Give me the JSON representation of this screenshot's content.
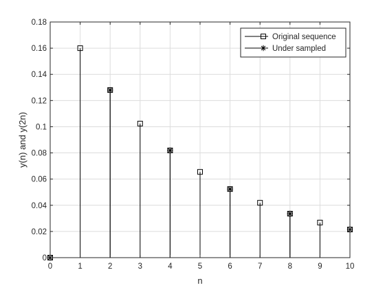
{
  "chart_data": {
    "type": "stem",
    "xlabel": "n",
    "ylabel": "y(n) and y(2n)",
    "xlim": [
      0,
      10
    ],
    "ylim": [
      0,
      0.18
    ],
    "x_ticks": [
      0,
      1,
      2,
      3,
      4,
      5,
      6,
      7,
      8,
      9,
      10
    ],
    "x_tick_labels": [
      "0",
      "1",
      "2",
      "3",
      "4",
      "5",
      "6",
      "7",
      "8",
      "9",
      "10"
    ],
    "y_ticks": [
      0,
      0.02,
      0.04,
      0.06,
      0.08,
      0.1,
      0.12,
      0.14,
      0.16,
      0.18
    ],
    "y_tick_labels": [
      "0",
      "0.02",
      "0.04",
      "0.06",
      "0.08",
      "0.1",
      "0.12",
      "0.14",
      "0.16",
      "0.18"
    ],
    "grid": true,
    "legend_position": "top-right",
    "series": [
      {
        "name": "Original sequence",
        "marker": "square",
        "color": "#000000",
        "x": [
          0,
          1,
          2,
          3,
          4,
          5,
          6,
          7,
          8,
          9,
          10
        ],
        "values": [
          0,
          0.16,
          0.128,
          0.1024,
          0.0819,
          0.0655,
          0.0524,
          0.0419,
          0.0336,
          0.0268,
          0.0215
        ]
      },
      {
        "name": "Under sampled",
        "marker": "asterisk",
        "color": "#000000",
        "x": [
          0,
          2,
          4,
          6,
          8,
          10
        ],
        "values": [
          0,
          0.128,
          0.0819,
          0.0524,
          0.0336,
          0.0215
        ]
      }
    ]
  }
}
